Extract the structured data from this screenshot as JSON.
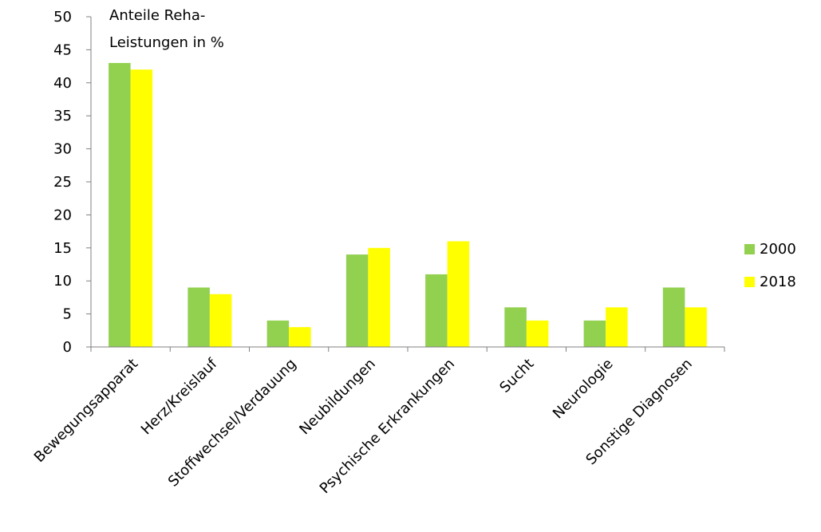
{
  "chart_data": {
    "type": "bar",
    "ylabel": [
      "Anteile Reha-",
      "Leistungen in %"
    ],
    "categories": [
      "Bewegungsapparat",
      "Herz/Kreislauf",
      "Stoffwechsel/Verdauung",
      "Neubildungen",
      "Psychische Erkrankungen",
      "Sucht",
      "Neurologie",
      "Sonstige Diagnosen"
    ],
    "series": [
      {
        "name": "2000",
        "color": "#92d050",
        "values": [
          43,
          9,
          4,
          14,
          11,
          6,
          4,
          9
        ]
      },
      {
        "name": "2018",
        "color": "#ffff00",
        "values": [
          42,
          8,
          3,
          15,
          16,
          4,
          6,
          6
        ]
      }
    ],
    "ylim": [
      0,
      50
    ],
    "yticks": [
      0,
      5,
      10,
      15,
      20,
      25,
      30,
      35,
      40,
      45,
      50
    ],
    "grid": false,
    "legend_position": "right"
  }
}
